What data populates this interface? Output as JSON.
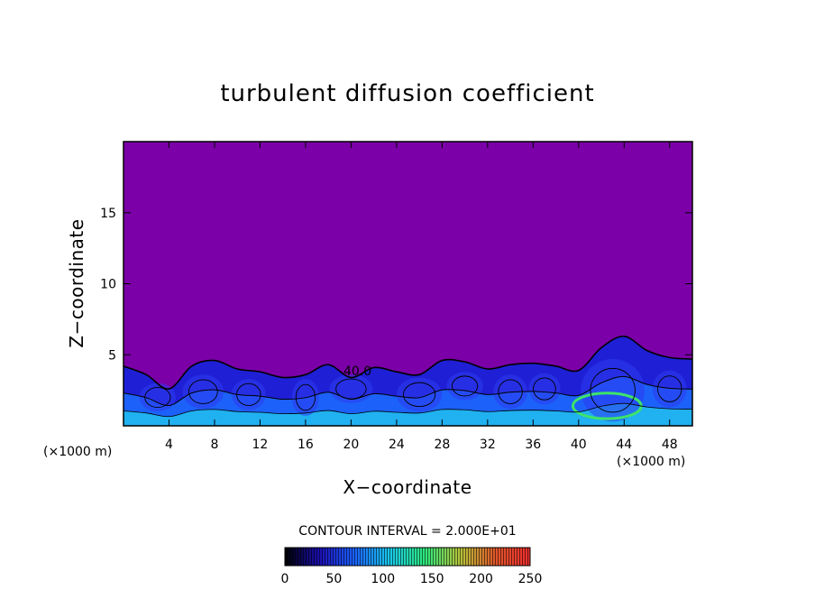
{
  "chart_data": {
    "type": "heatmap",
    "title": "turbulent diffusion coefficient",
    "xlabel": "X−coordinate",
    "ylabel": "Z−coordinate",
    "x_unit_label": "(×1000 m)",
    "z_unit_label": "(×1000 m)",
    "xlim": [
      0,
      50
    ],
    "ylim": [
      0,
      20
    ],
    "x_ticks": [
      4,
      8,
      12,
      16,
      20,
      24,
      28,
      32,
      36,
      40,
      44,
      48
    ],
    "y_ticks": [
      5,
      10,
      15
    ],
    "contour_interval_text": "CONTOUR INTERVAL = 2.000E+01",
    "contour_label": "40.0",
    "colorbar": {
      "range": [
        0,
        250
      ],
      "ticks": [
        0,
        50,
        100,
        150,
        200,
        250
      ],
      "colors": [
        "#000000",
        "#1b0fb4",
        "#1a63ff",
        "#19c8e9",
        "#2de87c",
        "#b6c43a",
        "#e0572a",
        "#ee2d2d"
      ]
    },
    "background_color": "#7b00a8",
    "turbulent_layer_top_profile": {
      "x": [
        0,
        2,
        4,
        6,
        8,
        10,
        12,
        14,
        16,
        18,
        20,
        22,
        24,
        26,
        28,
        30,
        32,
        34,
        36,
        38,
        40,
        42,
        44,
        46,
        48,
        50
      ],
      "z": [
        4.2,
        3.6,
        2.6,
        4.2,
        4.6,
        4.0,
        3.8,
        3.4,
        3.6,
        4.3,
        3.4,
        4.1,
        3.8,
        3.6,
        4.6,
        4.5,
        4.0,
        4.3,
        4.4,
        4.2,
        3.9,
        5.5,
        6.3,
        5.3,
        4.8,
        4.7
      ]
    }
  }
}
